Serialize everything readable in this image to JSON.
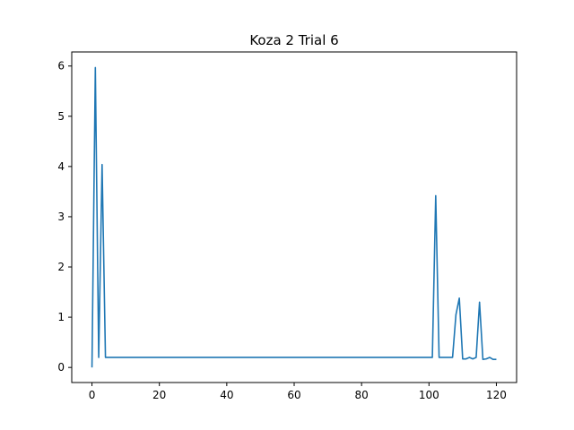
{
  "chart_data": {
    "type": "line",
    "title": "Koza 2 Trial 6",
    "xlabel": "",
    "ylabel": "",
    "xlim": [
      -6,
      126
    ],
    "ylim": [
      -0.3,
      6.28
    ],
    "xticks": [
      0,
      20,
      40,
      60,
      80,
      100,
      120
    ],
    "yticks": [
      0,
      1,
      2,
      3,
      4,
      5,
      6
    ],
    "grid": false,
    "legend": "none",
    "series": [
      {
        "color": "#1f77b4",
        "x": [
          0,
          1,
          2,
          3,
          4,
          5,
          10,
          20,
          30,
          40,
          50,
          60,
          70,
          80,
          90,
          100,
          101,
          102,
          103,
          104,
          105,
          106,
          107,
          108,
          109,
          110,
          111,
          112,
          113,
          114,
          115,
          116,
          117,
          118,
          119,
          120
        ],
        "y": [
          0,
          5.97,
          0.2,
          4.04,
          0.2,
          0.2,
          0.2,
          0.2,
          0.2,
          0.2,
          0.2,
          0.2,
          0.2,
          0.2,
          0.2,
          0.2,
          0.2,
          3.42,
          0.2,
          0.2,
          0.2,
          0.2,
          0.2,
          1.05,
          1.38,
          0.17,
          0.17,
          0.2,
          0.17,
          0.2,
          1.3,
          0.16,
          0.17,
          0.2,
          0.16,
          0.16
        ]
      }
    ]
  }
}
